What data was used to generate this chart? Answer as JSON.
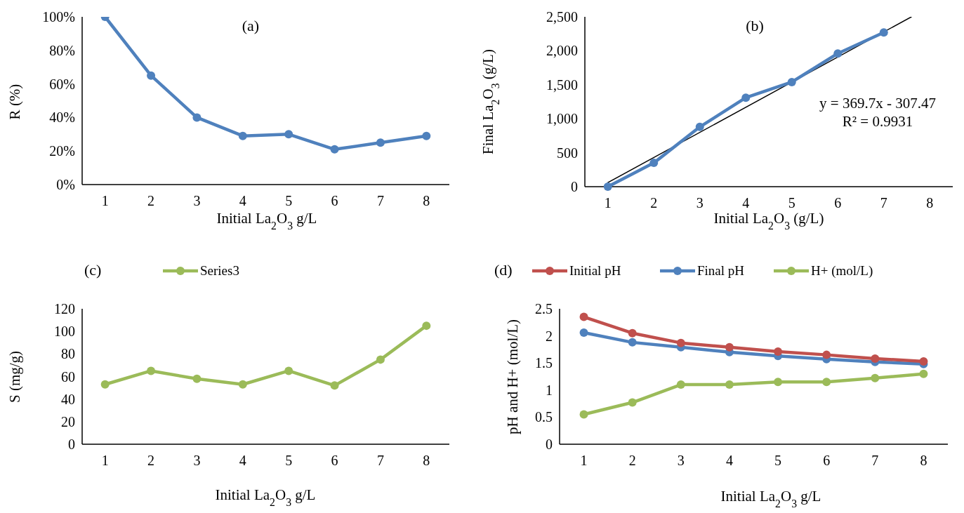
{
  "chart_data": [
    {
      "type": "line",
      "title": "(a)",
      "xlabel": "Initial La$_{2}$O$_{3}$ g/L",
      "ylabel": "R (%)",
      "categories": [
        "1",
        "2",
        "3",
        "4",
        "5",
        "6",
        "7",
        "8"
      ],
      "series": [
        {
          "color": "#4f81bd",
          "values": [
            100,
            65,
            40,
            29,
            30,
            21,
            25,
            29
          ]
        }
      ],
      "ylim": [
        0,
        100
      ],
      "yticks": [
        {
          "value": 0,
          "label": "0%"
        },
        {
          "value": 20,
          "label": "20%"
        },
        {
          "value": 40,
          "label": "40%"
        },
        {
          "value": 60,
          "label": "60%"
        },
        {
          "value": 80,
          "label": "80%"
        },
        {
          "value": 100,
          "label": "100%"
        }
      ],
      "marker": "circle",
      "grid": false,
      "legend": false
    },
    {
      "type": "line",
      "title": "(b)",
      "xlabel": "Initial La$_{2}$O$_{3}$ (g/L)",
      "ylabel": "Final La$_{2}$O$_{3}$ (g/L)",
      "x": [
        1,
        2,
        3,
        4,
        5,
        6,
        7
      ],
      "xlim": [
        0.5,
        8.5
      ],
      "xticks": [
        1,
        2,
        3,
        4,
        5,
        6,
        7,
        8
      ],
      "series": [
        {
          "color": "#4f81bd",
          "values": [
            0,
            350,
            880,
            1310,
            1540,
            1960,
            2270
          ]
        },
        {
          "type": "line",
          "color": "#000000",
          "x": [
            1,
            7.6
          ],
          "values": [
            60,
            2500
          ],
          "marker": "none"
        }
      ],
      "ylim": [
        0,
        2500
      ],
      "yticks": [
        0,
        500,
        {
          "value": 1000,
          "label": "1,000"
        },
        {
          "value": 1500,
          "label": "1,500"
        },
        {
          "value": 2000,
          "label": "2,000"
        },
        {
          "value": 2500,
          "label": "2,500"
        }
      ],
      "annotations": [
        "y = 369.7x - 307.47",
        "R² = 0.9931"
      ],
      "marker": "circle",
      "grid": false,
      "legend": false
    },
    {
      "type": "line",
      "title": "(c)",
      "xlabel": "Initial La$_{2}$O$_{3}$ g/L",
      "ylabel": "S (mg/g)",
      "categories": [
        "1",
        "2",
        "3",
        "4",
        "5",
        "6",
        "7",
        "8"
      ],
      "series": [
        {
          "name": "Series3",
          "color": "#9bbb59",
          "values": [
            53,
            65,
            58,
            53,
            65,
            52,
            75,
            105
          ]
        }
      ],
      "ylim": [
        0,
        120
      ],
      "yticks": [
        0,
        20,
        40,
        60,
        80,
        100,
        120
      ],
      "marker": "circle",
      "grid": false,
      "legend": "top"
    },
    {
      "type": "line",
      "title": "(d)",
      "xlabel": "Initial La$_{2}$O$_{3}$ g/L",
      "ylabel": "pH and H+ (mol/L)",
      "categories": [
        "1",
        "2",
        "3",
        "4",
        "5",
        "6",
        "7",
        "8"
      ],
      "series": [
        {
          "name": "Initial pH",
          "color": "#c0504d",
          "values": [
            2.35,
            2.05,
            1.87,
            1.79,
            1.71,
            1.65,
            1.58,
            1.53
          ]
        },
        {
          "name": "Final pH",
          "color": "#4f81bd",
          "values": [
            2.06,
            1.88,
            1.79,
            1.7,
            1.63,
            1.57,
            1.52,
            1.48
          ]
        },
        {
          "name": "H+ (mol/L)",
          "color": "#9bbb59",
          "values": [
            0.55,
            0.77,
            1.1,
            1.1,
            1.15,
            1.15,
            1.22,
            1.3
          ]
        }
      ],
      "ylim": [
        0,
        2.5
      ],
      "yticks": [
        0,
        0.5,
        1,
        1.5,
        2,
        2.5
      ],
      "marker": "circle",
      "grid": false,
      "legend": "top"
    }
  ]
}
